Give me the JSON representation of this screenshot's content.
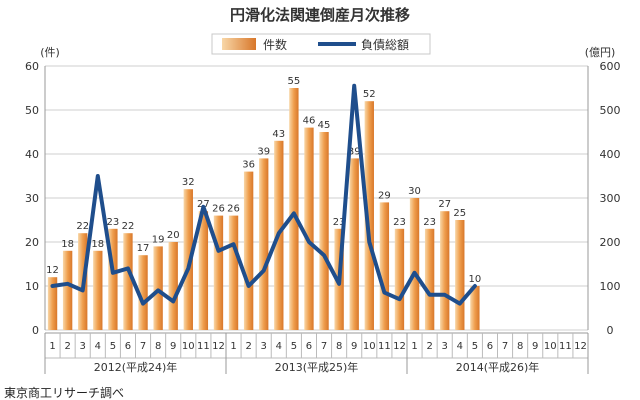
{
  "chart_data": {
    "type": "bar+line",
    "title": "円滑化法関連倒産月次推移",
    "ylabel_left": "(件)",
    "ylabel_right": "(億円)",
    "ylim_left": [
      0,
      60
    ],
    "ylim_right": [
      0,
      600
    ],
    "yticks_left": [
      "0",
      "10",
      "20",
      "30",
      "40",
      "50",
      "60"
    ],
    "yticks_right": [
      "0",
      "100",
      "200",
      "300",
      "400",
      "500",
      "600"
    ],
    "legend_position": "top-center",
    "month_labels": [
      "1",
      "2",
      "3",
      "4",
      "5",
      "6",
      "7",
      "8",
      "9",
      "10",
      "11",
      "12",
      "1",
      "2",
      "3",
      "4",
      "5",
      "6",
      "7",
      "8",
      "9",
      "10",
      "11",
      "12",
      "1",
      "2",
      "3",
      "4",
      "5",
      "6",
      "7",
      "8",
      "9",
      "10",
      "11",
      "12"
    ],
    "year_labels": [
      "2012(平成24)年",
      "2013(平成25)年",
      "2014(平成26)年"
    ],
    "series": [
      {
        "name": "件数",
        "kind": "bar",
        "axis": "left",
        "color": "#e08a3c",
        "values": [
          12,
          18,
          22,
          18,
          23,
          22,
          17,
          19,
          20,
          32,
          27,
          26,
          26,
          36,
          39,
          43,
          55,
          46,
          45,
          23,
          39,
          52,
          29,
          23,
          30,
          23,
          27,
          25,
          10,
          null,
          null,
          null,
          null,
          null,
          null,
          null
        ],
        "labels": [
          "12",
          "18",
          "22",
          "18",
          "23",
          "22",
          "17",
          "19",
          "20",
          "32",
          "27",
          "26",
          "26",
          "36",
          "39",
          "43",
          "55",
          "46",
          "45",
          "23",
          "39",
          "52",
          "29",
          "23",
          "30",
          "23",
          "27",
          "25",
          "10",
          "",
          "",
          "",
          "",
          "",
          "",
          ""
        ]
      },
      {
        "name": "負債総額",
        "kind": "line",
        "axis": "right",
        "color": "#1f4e8c",
        "values": [
          100,
          105,
          90,
          350,
          130,
          140,
          60,
          90,
          65,
          140,
          280,
          180,
          195,
          100,
          135,
          220,
          265,
          200,
          170,
          105,
          555,
          200,
          85,
          70,
          130,
          80,
          80,
          60,
          100,
          null,
          null,
          null,
          null,
          null,
          null,
          null
        ]
      }
    ]
  },
  "source": "東京商工リサーチ調べ",
  "colors": {
    "bar_light": "#f6c890",
    "bar_dark": "#d87c2e",
    "line": "#1f4e8c",
    "grid": "#cfcfcf"
  }
}
